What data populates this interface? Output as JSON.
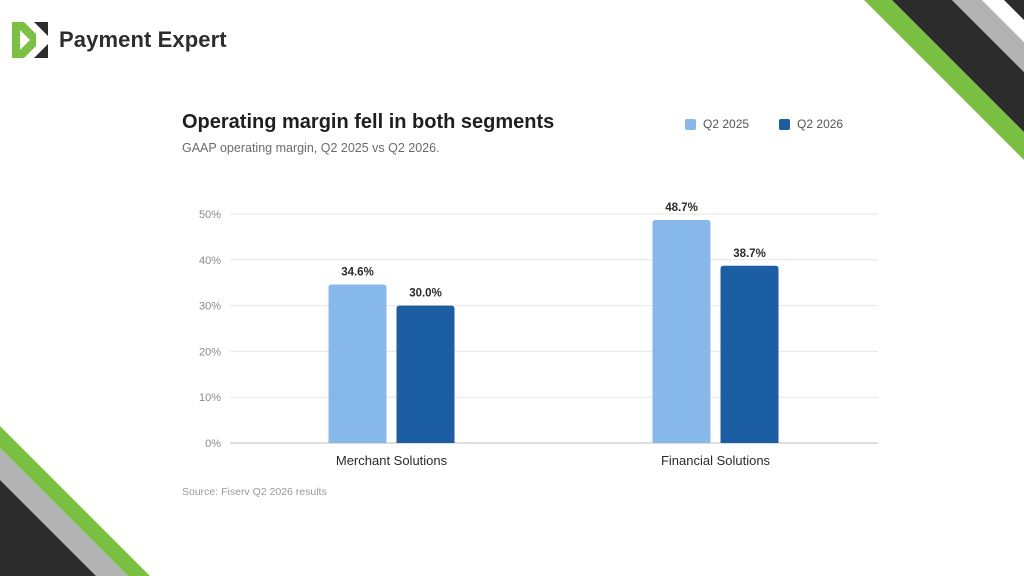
{
  "brand": {
    "name": "Payment Expert",
    "logo_icon": "payment-expert-logo-icon"
  },
  "colors": {
    "q2_2025": "#86b9ea",
    "q2_2026": "#1b5ea3",
    "accent_green": "#7ac143",
    "stripe_dark": "#2b2b2b",
    "stripe_gray": "#b3b3b3"
  },
  "chart_data": {
    "type": "bar",
    "title": "Operating margin fell in both segments",
    "subtitle": "GAAP operating margin, Q2 2025 vs Q2 2026.",
    "categories": [
      "Merchant Solutions",
      "Financial Solutions"
    ],
    "series": [
      {
        "name": "Q2 2025",
        "values": [
          34.6,
          48.7
        ],
        "labels": [
          "34.6%",
          "48.7%"
        ]
      },
      {
        "name": "Q2 2026",
        "values": [
          30.0,
          38.7
        ],
        "labels": [
          "30.0%",
          "38.7%"
        ]
      }
    ],
    "yticks": [
      "0%",
      "10%",
      "20%",
      "30%",
      "40%",
      "50%"
    ],
    "ylim": [
      0,
      50
    ],
    "grid": true,
    "legend": "top-right",
    "source": "Source: Fiserv Q2 2026 results"
  }
}
